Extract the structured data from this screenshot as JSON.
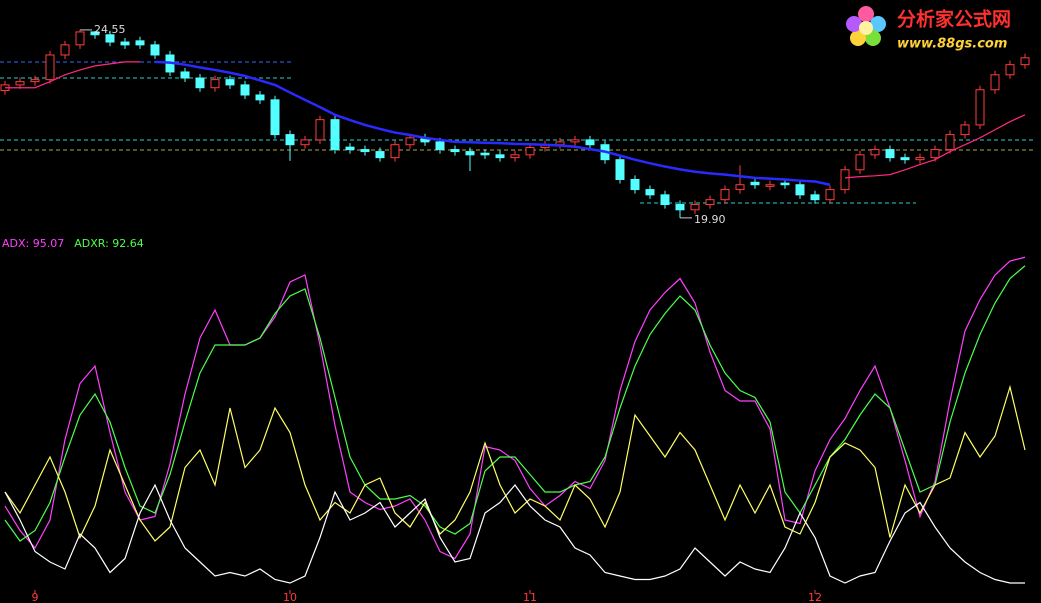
{
  "chart_data": [
    {
      "type": "candlestick",
      "open": [
        23.05,
        23.19,
        23.27,
        23.32,
        23.93,
        24.18,
        24.5,
        24.43,
        24.25,
        24.28,
        24.18,
        23.93,
        23.51,
        23.36,
        23.12,
        23.32,
        23.19,
        22.94,
        22.82,
        21.96,
        21.71,
        21.83,
        22.33,
        21.65,
        21.59,
        21.54,
        21.39,
        21.71,
        21.88,
        21.78,
        21.59,
        21.54,
        21.5,
        21.46,
        21.39,
        21.46,
        21.64,
        21.71,
        21.78,
        21.83,
        21.71,
        21.34,
        20.85,
        20.6,
        20.47,
        20.23,
        20.1,
        20.23,
        20.35,
        20.6,
        20.78,
        20.68,
        20.76,
        20.72,
        20.47,
        20.35,
        20.6,
        21.09,
        21.46,
        21.59,
        21.39,
        21.34,
        21.39,
        21.59,
        21.96,
        22.2,
        23.07,
        23.44,
        23.69
      ],
      "high": [
        23.29,
        23.37,
        23.42,
        24.03,
        24.28,
        24.55,
        24.52,
        24.53,
        24.35,
        24.38,
        24.28,
        24.03,
        23.61,
        23.46,
        23.42,
        23.42,
        23.29,
        23.04,
        22.92,
        22.06,
        21.93,
        22.43,
        22.43,
        21.75,
        21.69,
        21.64,
        21.81,
        21.98,
        21.98,
        21.88,
        21.69,
        21.64,
        21.6,
        21.56,
        21.56,
        21.74,
        21.81,
        21.88,
        21.93,
        21.93,
        21.81,
        21.44,
        20.95,
        20.7,
        20.57,
        20.33,
        20.33,
        20.45,
        20.7,
        21.2,
        20.88,
        20.82,
        20.86,
        20.82,
        20.57,
        20.7,
        21.19,
        21.56,
        21.69,
        21.69,
        21.49,
        21.49,
        21.69,
        22.06,
        22.3,
        23.17,
        23.54,
        23.79,
        23.96
      ],
      "low": [
        22.95,
        23.09,
        23.17,
        23.22,
        23.83,
        24.08,
        24.33,
        24.15,
        24.08,
        24.08,
        23.83,
        23.41,
        23.26,
        23.02,
        23.02,
        23.09,
        22.84,
        22.72,
        21.86,
        21.31,
        21.61,
        21.73,
        21.49,
        21.49,
        21.44,
        21.29,
        21.29,
        21.61,
        21.68,
        21.49,
        21.44,
        21.06,
        21.36,
        21.29,
        21.29,
        21.36,
        21.54,
        21.61,
        21.68,
        21.61,
        21.24,
        20.75,
        20.5,
        20.37,
        20.13,
        19.9,
        20.0,
        20.13,
        20.25,
        20.5,
        20.62,
        20.58,
        20.62,
        20.37,
        20.25,
        20.25,
        20.5,
        20.99,
        21.36,
        21.29,
        21.24,
        21.24,
        21.29,
        21.49,
        21.86,
        22.1,
        22.97,
        23.34,
        23.59
      ],
      "close": [
        23.19,
        23.27,
        23.32,
        23.93,
        24.18,
        24.5,
        24.43,
        24.25,
        24.18,
        24.18,
        23.93,
        23.51,
        23.36,
        23.12,
        23.32,
        23.19,
        22.94,
        22.82,
        21.96,
        21.71,
        21.83,
        22.33,
        21.59,
        21.59,
        21.54,
        21.39,
        21.71,
        21.88,
        21.78,
        21.59,
        21.54,
        21.46,
        21.46,
        21.39,
        21.46,
        21.64,
        21.71,
        21.78,
        21.83,
        21.71,
        21.34,
        20.85,
        20.6,
        20.47,
        20.23,
        20.1,
        20.23,
        20.35,
        20.6,
        20.72,
        20.72,
        20.72,
        20.72,
        20.47,
        20.35,
        20.6,
        21.09,
        21.46,
        21.59,
        21.39,
        21.34,
        21.39,
        21.59,
        21.96,
        22.2,
        23.07,
        23.44,
        23.69,
        23.86
      ],
      "up_color": "#ff3c3c",
      "down_color": "#54ffff",
      "series": [
        {
          "color": "#2a2aff",
          "values": [
            null,
            null,
            null,
            null,
            null,
            null,
            null,
            null,
            null,
            null,
            23.76,
            23.74,
            23.69,
            23.62,
            23.56,
            23.49,
            23.41,
            23.3,
            23.19,
            23.0,
            22.82,
            22.64,
            22.45,
            22.32,
            22.2,
            22.1,
            22.01,
            21.95,
            21.88,
            21.83,
            21.78,
            21.77,
            21.76,
            21.75,
            21.73,
            21.72,
            21.71,
            21.69,
            21.66,
            21.6,
            21.54,
            21.44,
            21.34,
            21.25,
            21.17,
            21.1,
            21.04,
            21.0,
            20.97,
            20.93,
            20.89,
            20.87,
            20.85,
            20.82,
            20.8,
            20.72,
            null,
            null,
            null,
            null,
            null,
            null,
            null,
            null,
            null,
            null,
            null,
            null,
            null
          ]
        },
        {
          "color": "#ff2a7f",
          "values": [
            23.12,
            23.12,
            23.12,
            23.27,
            23.44,
            23.56,
            23.66,
            23.71,
            23.76,
            23.76,
            null,
            null,
            null,
            null,
            null,
            null,
            null,
            null,
            null,
            null,
            null,
            null,
            null,
            null,
            null,
            null,
            null,
            null,
            null,
            null,
            null,
            null,
            null,
            null,
            null,
            null,
            null,
            null,
            null,
            null,
            null,
            null,
            null,
            null,
            null,
            null,
            null,
            null,
            null,
            null,
            null,
            null,
            null,
            null,
            null,
            null,
            20.89,
            20.92,
            20.94,
            20.97,
            21.09,
            21.22,
            21.34,
            21.54,
            21.71,
            21.88,
            22.08,
            22.28,
            22.45
          ]
        }
      ],
      "annotations": [
        {
          "index": 5,
          "value": 24.55,
          "label": "24.55"
        },
        {
          "index": 45,
          "value": 19.9,
          "label": "19.90"
        }
      ],
      "ylim": [
        19.6,
        25.29
      ]
    },
    {
      "type": "line",
      "categories": [
        null,
        null,
        "9",
        null,
        null,
        null,
        null,
        null,
        null,
        null,
        null,
        null,
        null,
        null,
        null,
        null,
        null,
        null,
        null,
        "10",
        null,
        null,
        null,
        null,
        null,
        null,
        null,
        null,
        null,
        null,
        null,
        null,
        null,
        null,
        null,
        "11",
        null,
        null,
        null,
        null,
        null,
        null,
        null,
        null,
        null,
        null,
        null,
        null,
        null,
        null,
        null,
        null,
        null,
        null,
        "12",
        null,
        null,
        null,
        null,
        null,
        null,
        null,
        null,
        null,
        null,
        null,
        null,
        null,
        null
      ],
      "series": [
        {
          "name": "ADX: 95.07",
          "color": "#ff40ff",
          "values": [
            24,
            17,
            12,
            20,
            43,
            59,
            64,
            45,
            28,
            20,
            21,
            36,
            56,
            72,
            80,
            70,
            70,
            72,
            78,
            88,
            90,
            70,
            47,
            28,
            25,
            23,
            24,
            26,
            20,
            11,
            9,
            16,
            41,
            40,
            37,
            29,
            24,
            27,
            31,
            29,
            37,
            57,
            71,
            80,
            85,
            89,
            82,
            68,
            57,
            54,
            54,
            46,
            20,
            19,
            34,
            43,
            49,
            57,
            64,
            52,
            37,
            21,
            31,
            54,
            74,
            83,
            90,
            94,
            95.07
          ]
        },
        {
          "name": "ADXR: 92.64",
          "color": "#4cff4c",
          "values": [
            20,
            14,
            17,
            25,
            38,
            50,
            56,
            48,
            35,
            24,
            22,
            33,
            48,
            62,
            70,
            70,
            70,
            72,
            79,
            84,
            86,
            72,
            55,
            38,
            30,
            26,
            26,
            27,
            24,
            18,
            16,
            19,
            34,
            38,
            38,
            33,
            28,
            28,
            30,
            31,
            38,
            52,
            64,
            73,
            79,
            84,
            80,
            70,
            62,
            57,
            55,
            48,
            28,
            22,
            30,
            38,
            43,
            50,
            56,
            52,
            40,
            28,
            30,
            48,
            62,
            73,
            82,
            89,
            92.64
          ]
        },
        {
          "color": "#ffff66",
          "values": [
            28,
            22,
            30,
            38,
            28,
            15,
            24,
            40,
            30,
            20,
            14,
            18,
            35,
            40,
            30,
            52,
            35,
            40,
            52,
            45,
            30,
            20,
            25,
            22,
            30,
            32,
            22,
            18,
            25,
            16,
            20,
            28,
            42,
            30,
            22,
            26,
            24,
            20,
            30,
            26,
            18,
            28,
            50,
            44,
            38,
            45,
            40,
            30,
            20,
            30,
            22,
            30,
            18,
            16,
            25,
            38,
            42,
            40,
            35,
            15,
            30,
            22,
            30,
            32,
            45,
            38,
            44,
            58,
            40
          ]
        },
        {
          "color": "#ffffff",
          "values": [
            28,
            20,
            11,
            8,
            6,
            16,
            12,
            5,
            9,
            22,
            30,
            20,
            12,
            8,
            4,
            5,
            4,
            6,
            3,
            2,
            4,
            15,
            28,
            20,
            22,
            25,
            18,
            22,
            26,
            15,
            8,
            9,
            22,
            25,
            30,
            24,
            20,
            18,
            12,
            10,
            5,
            4,
            3,
            3,
            4,
            6,
            12,
            8,
            4,
            8,
            6,
            5,
            12,
            22,
            15,
            4,
            2,
            4,
            5,
            14,
            22,
            25,
            18,
            12,
            8,
            5,
            3,
            2,
            2
          ]
        }
      ],
      "ylim": [
        0,
        100
      ],
      "label_color": "#ff3c3c"
    }
  ],
  "watermark": {
    "title": "分析家公式网",
    "url": "www.88gs.com"
  }
}
